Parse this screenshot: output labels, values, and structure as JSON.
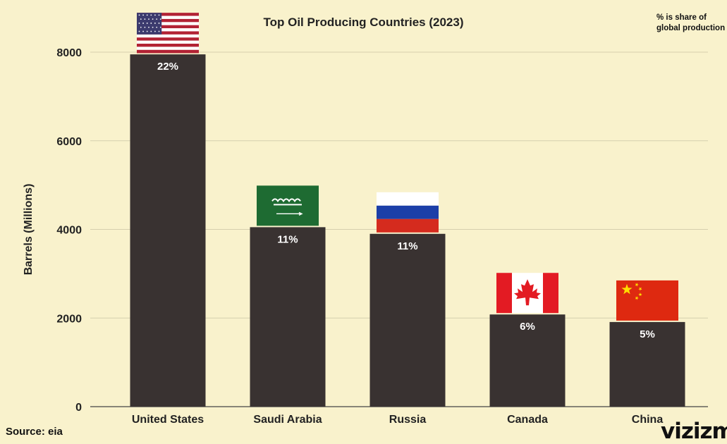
{
  "chart_data": {
    "type": "bar",
    "title": "Top Oil Producing Countries (2023)",
    "note": "% is share of global production",
    "ylabel": "Barrels (Millions)",
    "xlabel": "",
    "ylim": [
      0,
      8000
    ],
    "yticks": [
      "0",
      "2000",
      "4000",
      "6000",
      "8000"
    ],
    "categories": [
      "United States",
      "Saudi Arabia",
      "Russia",
      "Canada",
      "China"
    ],
    "values": [
      7950,
      4050,
      3900,
      2080,
      1910
    ],
    "labels": [
      "22%",
      "11%",
      "11%",
      "6%",
      "5%"
    ],
    "flags": [
      "us-flag",
      "saudi-arabia-flag",
      "russia-flag",
      "canada-flag",
      "china-flag"
    ],
    "grid": true,
    "colors": {
      "background": "#f9f2cc",
      "bar": "#393231",
      "grid": "#d6cfae",
      "us_red": "#b22234",
      "us_blue": "#3c3b6e",
      "saudi_green": "#1e6b32",
      "russia_blue": "#1c3fa8",
      "russia_red": "#d52b1e",
      "canada_red": "#e31b23",
      "china_red": "#de2910",
      "china_star": "#ffde00"
    }
  },
  "footer": {
    "source": "Source: eia",
    "brand": "vizizm"
  }
}
